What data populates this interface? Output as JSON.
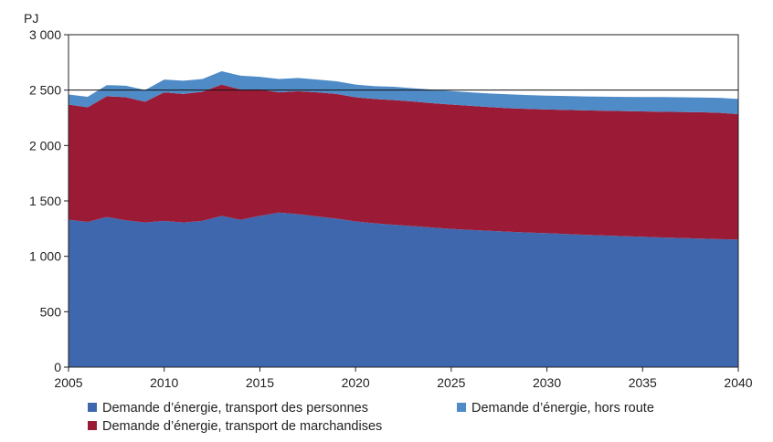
{
  "chart_data": {
    "type": "area",
    "stacked": true,
    "title": "",
    "ylabel": "PJ",
    "xlabel": "",
    "xlim": [
      2005,
      2040
    ],
    "ylim": [
      0,
      3000
    ],
    "x_ticks": [
      2005,
      2010,
      2015,
      2020,
      2025,
      2030,
      2035,
      2040
    ],
    "y_ticks": [
      0,
      500,
      1000,
      1500,
      2000,
      2500,
      3000
    ],
    "x_tick_labels": [
      "2005",
      "2010",
      "2015",
      "2020",
      "2025",
      "2030",
      "2035",
      "2040"
    ],
    "y_tick_labels": [
      "0",
      "500",
      "1 000",
      "1 500",
      "2 000",
      "2 500",
      "3 000"
    ],
    "grid": false,
    "reference_line_y": 2500,
    "legend_position": "bottom",
    "x": [
      2005,
      2006,
      2007,
      2008,
      2009,
      2010,
      2011,
      2012,
      2013,
      2014,
      2015,
      2016,
      2017,
      2018,
      2019,
      2020,
      2021,
      2022,
      2023,
      2024,
      2025,
      2026,
      2027,
      2028,
      2029,
      2030,
      2031,
      2032,
      2033,
      2034,
      2035,
      2036,
      2037,
      2038,
      2039,
      2040
    ],
    "series": [
      {
        "name": "Demande d’énergie, transport des personnes",
        "color": "#3F67AE",
        "values": [
          1330,
          1310,
          1355,
          1325,
          1305,
          1320,
          1305,
          1320,
          1365,
          1330,
          1365,
          1395,
          1380,
          1360,
          1340,
          1315,
          1298,
          1285,
          1272,
          1260,
          1248,
          1238,
          1230,
          1222,
          1215,
          1208,
          1201,
          1194,
          1188,
          1182,
          1176,
          1170,
          1165,
          1160,
          1155,
          1152
        ]
      },
      {
        "name": "Demande d’énergie, transport de marchandises",
        "color": "#9B1B36",
        "values": [
          1040,
          1035,
          1090,
          1110,
          1090,
          1160,
          1160,
          1165,
          1185,
          1175,
          1140,
          1085,
          1110,
          1120,
          1125,
          1120,
          1122,
          1125,
          1125,
          1122,
          1122,
          1120,
          1117,
          1115,
          1115,
          1117,
          1120,
          1123,
          1126,
          1129,
          1132,
          1135,
          1138,
          1140,
          1140,
          1131
        ]
      },
      {
        "name": "Demande d’énergie, hors route",
        "color": "#4F8BC6",
        "values": [
          90,
          95,
          100,
          105,
          105,
          115,
          120,
          115,
          120,
          125,
          115,
          120,
          120,
          115,
          115,
          115,
          115,
          120,
          120,
          122,
          122,
          122,
          122,
          125,
          125,
          125,
          126,
          126,
          127,
          128,
          130,
          132,
          132,
          133,
          135,
          137
        ]
      }
    ]
  },
  "legend": {
    "items": [
      {
        "label": "Demande d’énergie, transport des personnes",
        "color": "#3F67AE"
      },
      {
        "label": "Demande d’énergie, hors route",
        "color": "#4F8BC6"
      },
      {
        "label": "Demande d’énergie, transport de marchandises",
        "color": "#9B1B36"
      }
    ]
  }
}
